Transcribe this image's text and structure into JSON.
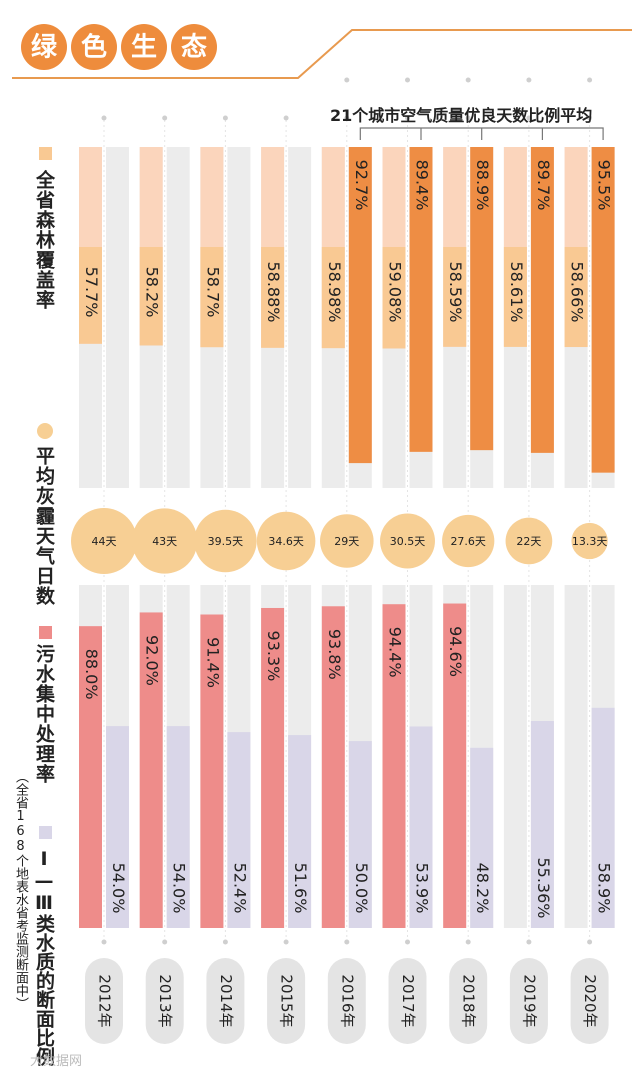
{
  "header": {
    "title": "绿色生态"
  },
  "annotation": "21个城市空气质量优良天数比例平均",
  "legend": {
    "forest": "全省森林覆盖率",
    "haze": "平均灰霾天气日数",
    "sewage": "污水集中处理率",
    "water_main": "Ⅰ—Ⅲ类水质的断面比例",
    "water_sub": "（全省168个地表水省考监测断面中）"
  },
  "watermark": "大数据网",
  "colors": {
    "forest_light": "#fbd5bc",
    "forest_dark": "#f9c993",
    "air": "#ee8d44",
    "bar_bg": "#ececec",
    "haze": "#f7cf94",
    "sewage": "#ee8c8a",
    "water": "#d9d6e8",
    "title_circle": "#ee8c3c",
    "line": "#e89a4f"
  },
  "chart_data": {
    "type": "bar",
    "title": "绿色生态",
    "categories": [
      "2012年",
      "2013年",
      "2014年",
      "2015年",
      "2016年",
      "2017年",
      "2018年",
      "2019年",
      "2020年"
    ],
    "series": [
      {
        "name": "全省森林覆盖率",
        "unit": "%",
        "values": [
          57.7,
          58.2,
          58.7,
          58.88,
          58.98,
          59.08,
          58.59,
          58.61,
          58.66
        ],
        "labels": [
          "57.7%",
          "58.2%",
          "58.7%",
          "58.88%",
          "58.98%",
          "59.08%",
          "58.59%",
          "58.61%",
          "58.66%"
        ]
      },
      {
        "name": "21个城市空气质量优良天数比例平均",
        "unit": "%",
        "values": [
          null,
          null,
          null,
          null,
          92.7,
          89.4,
          88.9,
          89.7,
          95.5
        ],
        "labels": [
          null,
          null,
          null,
          null,
          "92.7%",
          "89.4%",
          "88.9%",
          "89.7%",
          "95.5%"
        ]
      },
      {
        "name": "平均灰霾天气日数",
        "unit": "天",
        "values": [
          44,
          43,
          39.5,
          34.6,
          29,
          30.5,
          27.6,
          22,
          13.3
        ],
        "labels": [
          "44天",
          "43天",
          "39.5天",
          "34.6天",
          "29天",
          "30.5天",
          "27.6天",
          "22天",
          "13.3天"
        ]
      },
      {
        "name": "污水集中处理率",
        "unit": "%",
        "values": [
          88.0,
          92.0,
          91.4,
          93.3,
          93.8,
          94.4,
          94.6,
          null,
          null
        ],
        "labels": [
          "88.0%",
          "92.0%",
          "91.4%",
          "93.3%",
          "93.8%",
          "94.4%",
          "94.6%",
          null,
          null
        ]
      },
      {
        "name": "Ⅰ—Ⅲ类水质的断面比例",
        "unit": "%",
        "values": [
          54.0,
          54.0,
          52.4,
          51.6,
          50.0,
          53.9,
          48.2,
          55.36,
          58.9
        ],
        "labels": [
          "54.0%",
          "54.0%",
          "52.4%",
          "51.6%",
          "50.0%",
          "53.9%",
          "48.2%",
          "55.36%",
          "58.9%"
        ]
      }
    ],
    "ylim": [
      0,
      100
    ]
  }
}
